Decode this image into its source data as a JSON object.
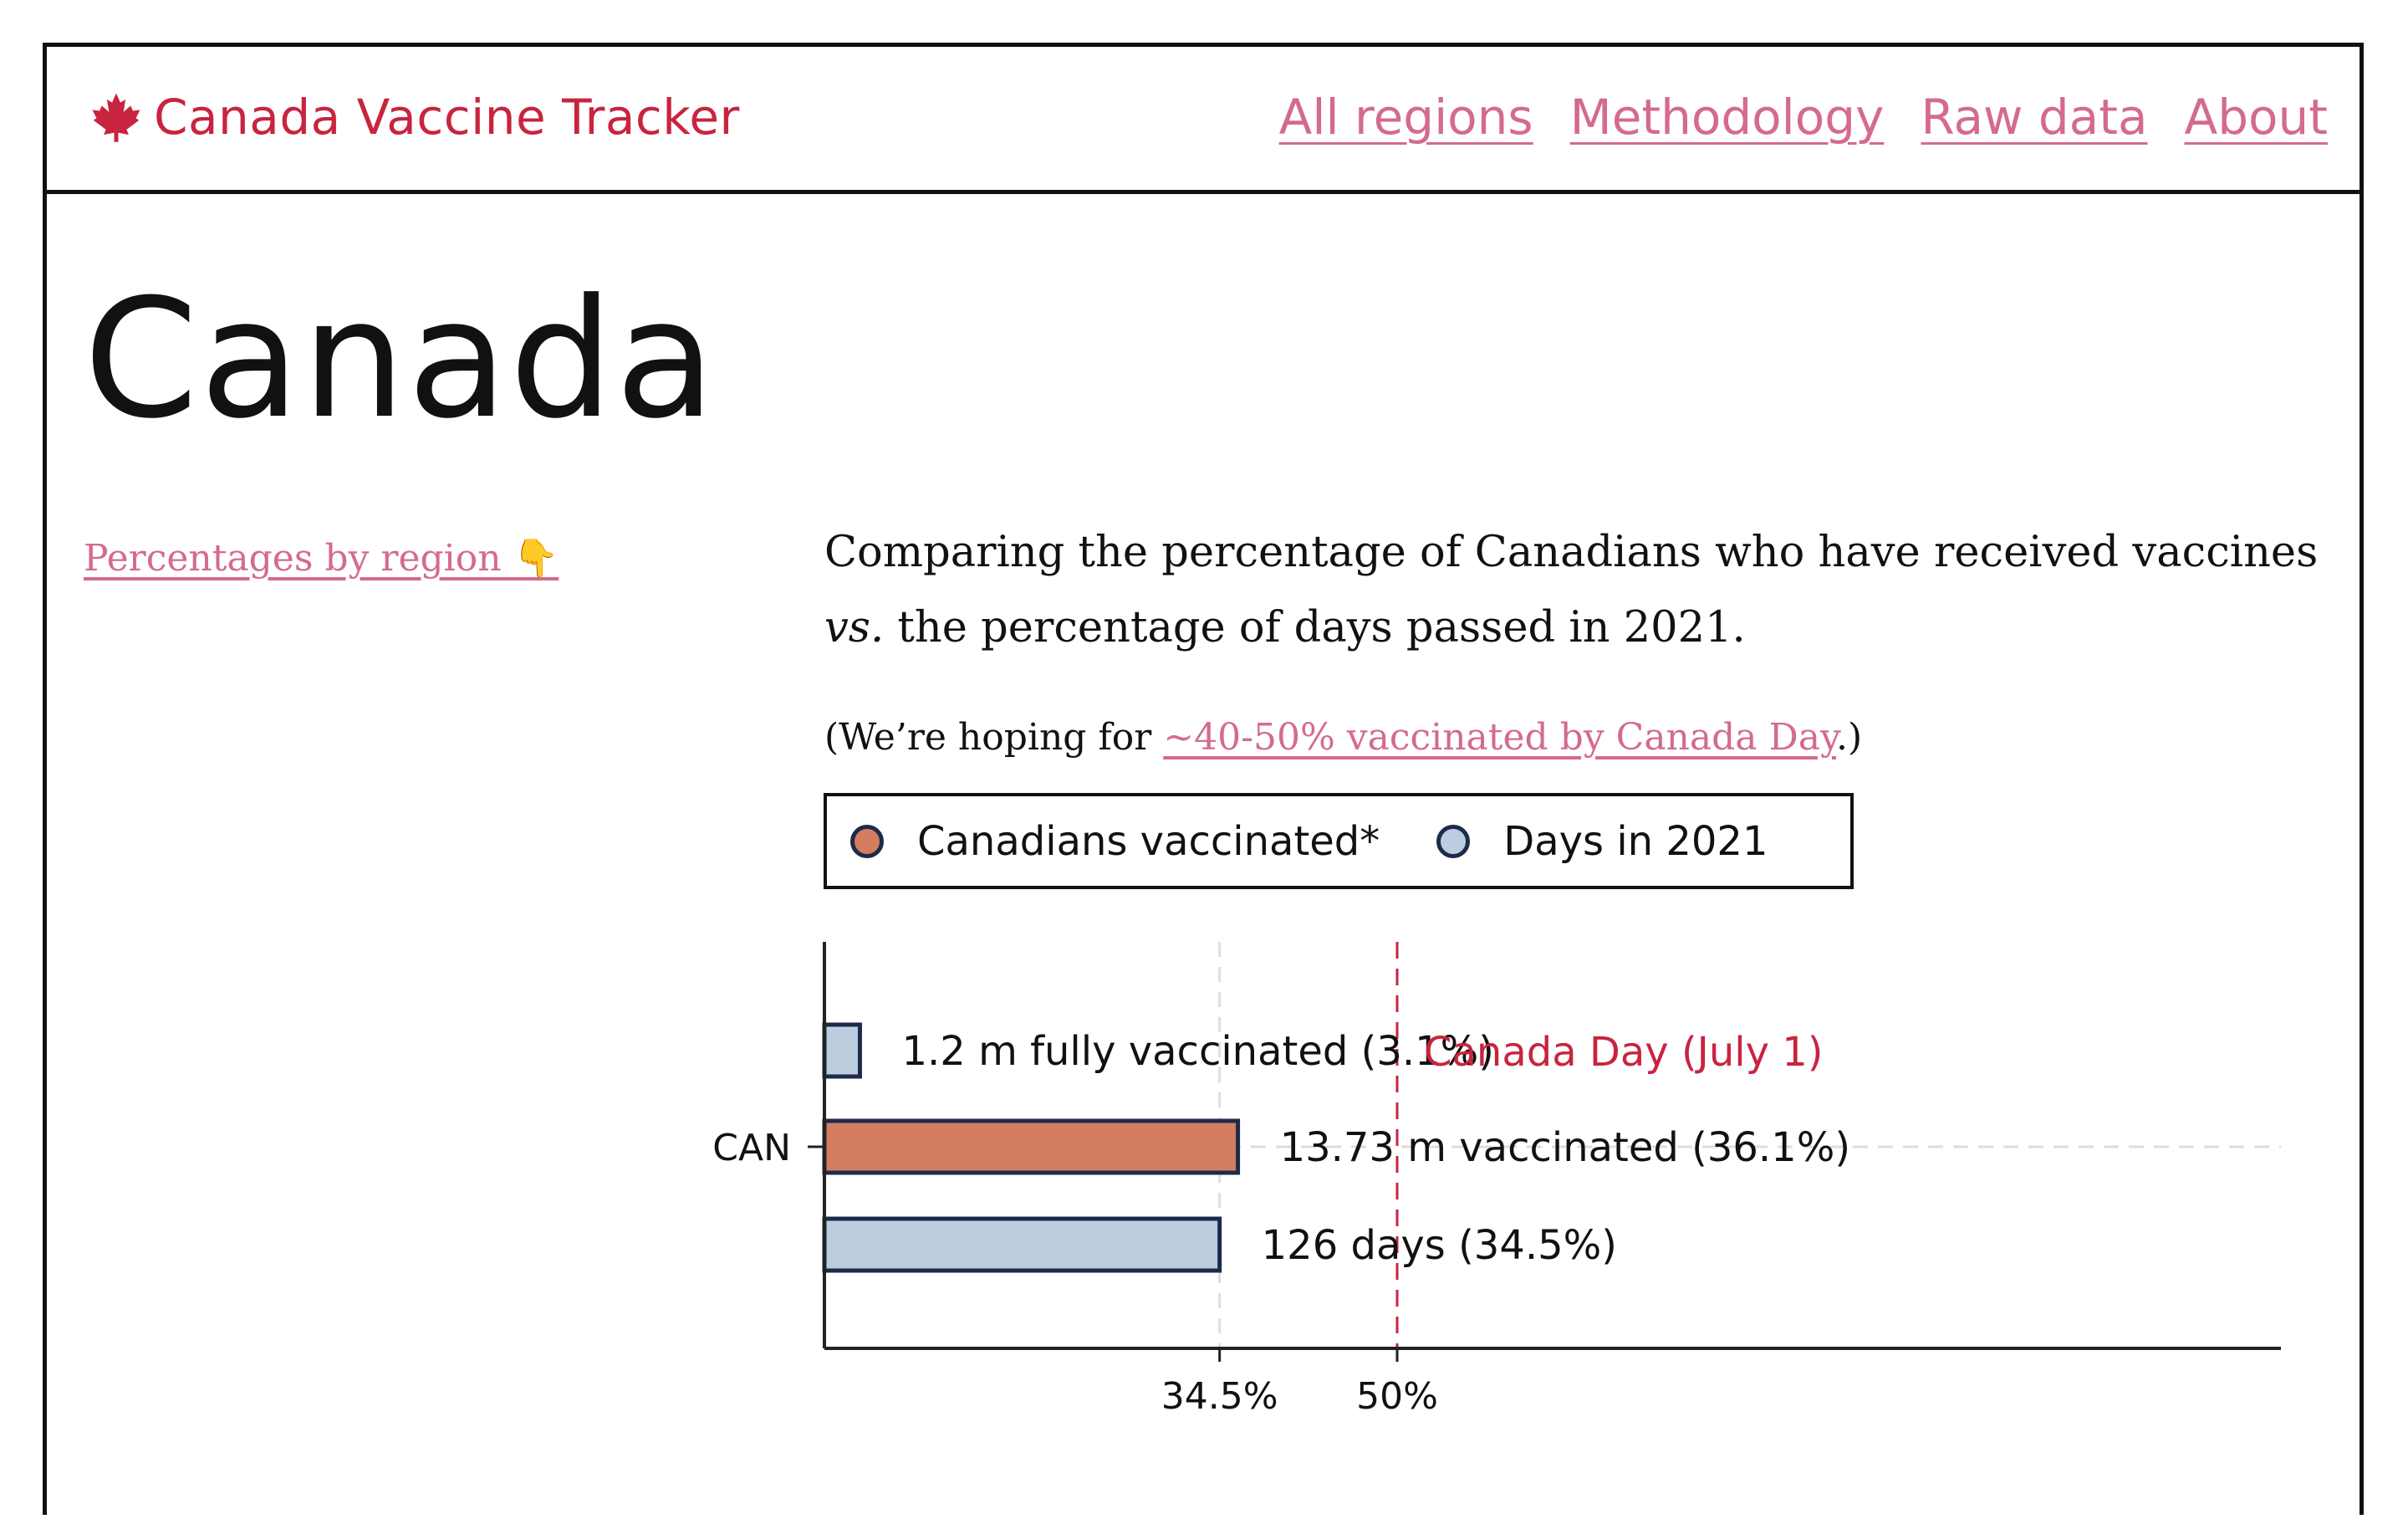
{
  "header": {
    "brand": "Canada Vaccine Tracker",
    "brand_icon": "maple-leaf-icon",
    "nav": [
      "All regions",
      "Methodology",
      "Raw data",
      "About"
    ]
  },
  "page": {
    "title": "Canada",
    "side_link": "Percentages by region 👇",
    "intro_line1": "Comparing the percentage of Canadians who have received vaccines",
    "intro_vs": "vs.",
    "intro_line2": " the percentage of days passed in 2021.",
    "hope_prefix": "(We’re hoping for ",
    "hope_link": "~40-50% vaccinated by Canada Day",
    "hope_suffix": ".)"
  },
  "legend": [
    {
      "label": "Canadians vaccinated*",
      "color": "#d47d5f"
    },
    {
      "label": "Days in 2021",
      "color": "#bccde0"
    }
  ],
  "colors": {
    "brand": "#c8243f",
    "link": "#d46b8c",
    "vaccinated": "#d47d5f",
    "days": "#bccde0",
    "bar_stroke": "#1e2a4a",
    "marker": "#c8243f"
  },
  "chart_data": {
    "type": "bar",
    "orientation": "horizontal",
    "category": "CAN",
    "xlim": [
      0,
      100
    ],
    "series": [
      {
        "name": "fully vaccinated",
        "value": 3.1,
        "label": "1.2 m fully vaccinated (3.1%)",
        "color": "#bccde0"
      },
      {
        "name": "vaccinated",
        "value": 36.1,
        "label": "13.73 m vaccinated (36.1%)",
        "color": "#d47d5f"
      },
      {
        "name": "days",
        "value": 34.5,
        "label": "126 days (34.5%)",
        "color": "#bccde0"
      }
    ],
    "reference_lines": [
      {
        "value": 34.5,
        "tick_label": "34.5%",
        "style": "dashed-light"
      },
      {
        "value": 50,
        "tick_label": "50%",
        "style": "dashed-red",
        "annotation": "Canada Day (July 1)"
      }
    ]
  }
}
